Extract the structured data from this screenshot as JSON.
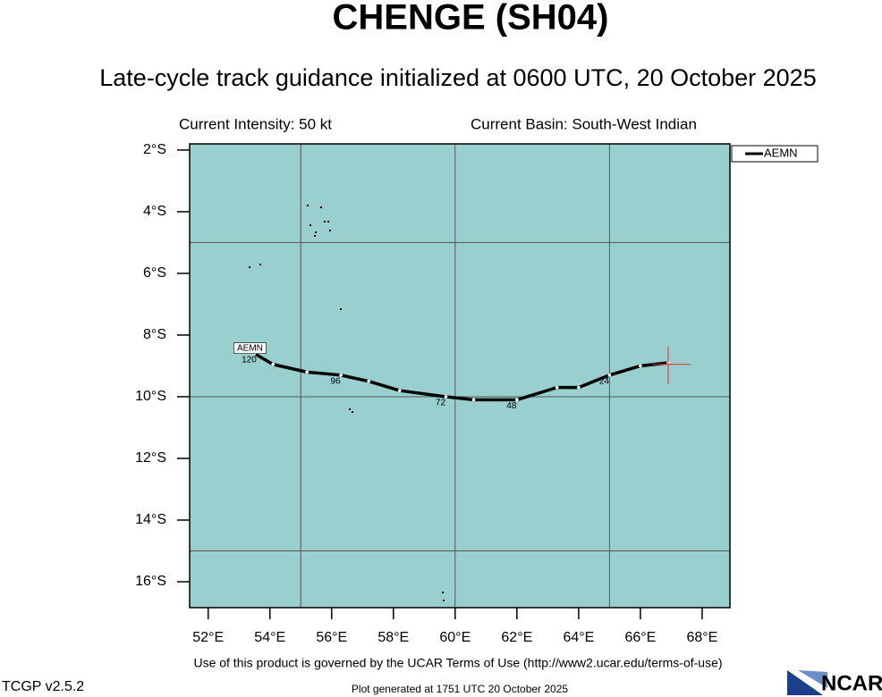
{
  "chart_data": {
    "type": "track",
    "title": "CHENGE (SH04)",
    "subtitle": "Late-cycle track guidance initialized at 0600 UTC, 20 October 2025",
    "intensity": "Current Intensity: 50 kt",
    "basin": "Current Basin: South-West Indian",
    "xlim": [
      51.4,
      68.9
    ],
    "ylim": [
      -16.84,
      -1.8
    ],
    "xticks": [
      {
        "value": 52,
        "label": "52°E"
      },
      {
        "value": 54,
        "label": "54°E"
      },
      {
        "value": 56,
        "label": "56°E"
      },
      {
        "value": 58,
        "label": "58°E"
      },
      {
        "value": 60,
        "label": "60°E"
      },
      {
        "value": 62,
        "label": "62°E"
      },
      {
        "value": 64,
        "label": "64°E"
      },
      {
        "value": 66,
        "label": "66°E"
      },
      {
        "value": 68,
        "label": "68°E"
      }
    ],
    "yticks": [
      {
        "value": -2,
        "label": "2°S"
      },
      {
        "value": -4,
        "label": "4°S"
      },
      {
        "value": -6,
        "label": "6°S"
      },
      {
        "value": -8,
        "label": "8°S"
      },
      {
        "value": -10,
        "label": "10°S"
      },
      {
        "value": -12,
        "label": "12°S"
      },
      {
        "value": -14,
        "label": "14°S"
      },
      {
        "value": -16,
        "label": "16°S"
      }
    ],
    "grid_lon": [
      55,
      60,
      65
    ],
    "grid_lat": [
      -5,
      -10,
      -15
    ],
    "ocean_color": "#99cfcf",
    "current_position": {
      "lon": 66.9,
      "lat": -8.95,
      "color": "#e03030"
    },
    "series": [
      {
        "name": "AEMN",
        "color": "#000000",
        "lon": [
          66.9,
          66.0,
          65.0,
          64.0,
          63.3,
          62.0,
          60.6,
          59.7,
          58.2,
          57.2,
          56.3,
          55.2,
          54.1,
          53.5
        ],
        "lat": [
          -8.9,
          -9.0,
          -9.3,
          -9.7,
          -9.7,
          -10.1,
          -10.1,
          -10.0,
          -9.8,
          -9.5,
          -9.3,
          -9.2,
          -8.95,
          -8.6
        ],
        "hours": [
          null,
          null,
          24,
          null,
          null,
          48,
          null,
          72,
          null,
          null,
          96,
          null,
          null,
          120
        ]
      }
    ],
    "footer": "Use of this product is governed by the UCAR Terms of Use (http://www2.ucar.edu/terms-of-use)",
    "version": "TCGP v2.5.2",
    "generated": "Plot generated at 1751 UTC   20 October 2025",
    "logo": "NCAR"
  }
}
